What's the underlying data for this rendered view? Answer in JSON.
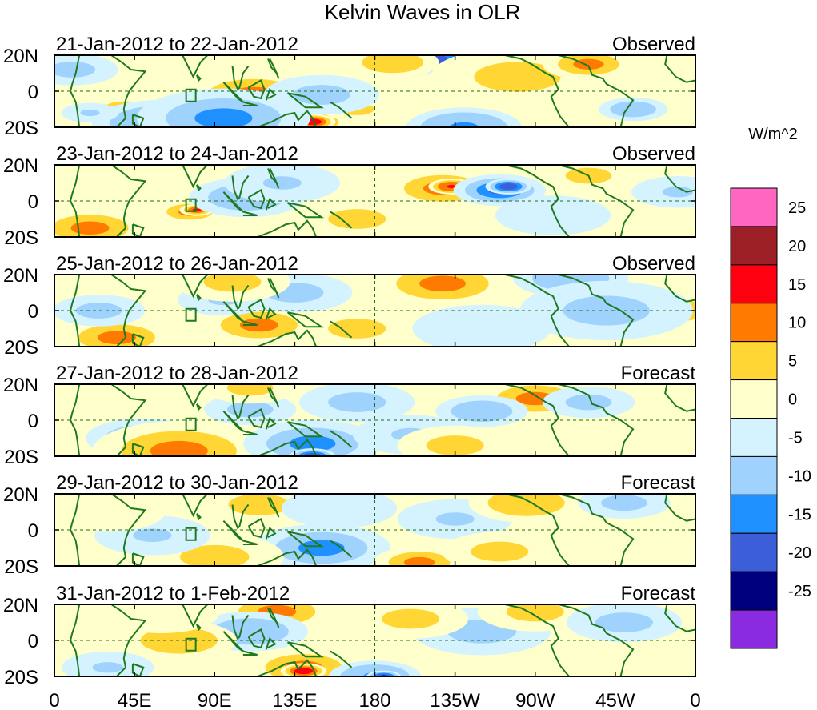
{
  "chart_data": {
    "type": "heatmap",
    "title": "Kelvin Waves in OLR",
    "units": "W/m^2",
    "x_tick_labels": [
      "0",
      "45E",
      "90E",
      "135E",
      "180",
      "135W",
      "90W",
      "45W",
      "0"
    ],
    "x_ticks_deg": [
      0,
      45,
      90,
      135,
      180,
      225,
      270,
      315,
      360
    ],
    "y_tick_labels": [
      "20N",
      "0",
      "20S"
    ],
    "ylim": [
      -20,
      20
    ],
    "colorbar": {
      "labels": [
        "25",
        "20",
        "15",
        "10",
        "5",
        "0",
        "-5",
        "-10",
        "-15",
        "-20",
        "-25"
      ],
      "levels": [
        25,
        20,
        15,
        10,
        5,
        0,
        -5,
        -10,
        -15,
        -20,
        -25
      ],
      "colors": [
        "#ff66c2",
        "#9b1f24",
        "#ff0010",
        "#ff7a00",
        "#ffd633",
        "#ffffcc",
        "#d4f3fe",
        "#a0d2fe",
        "#1e90ff",
        "#3c5fd9",
        "#00007f",
        "#8a2be2"
      ]
    },
    "panels": [
      {
        "label": "21-Jan-2012 to 22-Jan-2012",
        "status": "Observed",
        "features": [
          [
            210,
            18,
            8,
            -22
          ],
          [
            233,
            10,
            5,
            -28
          ],
          [
            112,
            -2,
            12,
            14
          ],
          [
            140,
            -17,
            8,
            16
          ],
          [
            145,
            -17,
            4,
            22
          ],
          [
            40,
            -10,
            6,
            12
          ],
          [
            60,
            -18,
            12,
            -16
          ],
          [
            95,
            -15,
            15,
            -14
          ],
          [
            230,
            -20,
            10,
            -15
          ],
          [
            20,
            -12,
            5,
            -10
          ],
          [
            325,
            -10,
            6,
            -12
          ],
          [
            170,
            -10,
            6,
            8
          ],
          [
            260,
            8,
            15,
            8
          ],
          [
            300,
            15,
            8,
            12
          ],
          [
            190,
            16,
            8,
            10
          ],
          [
            10,
            12,
            8,
            -8
          ],
          [
            150,
            -2,
            10,
            -8
          ]
        ]
      },
      {
        "label": "23-Jan-2012 to 24-Jan-2012",
        "status": "Observed",
        "features": [
          [
            218,
            7,
            10,
            14
          ],
          [
            223,
            8,
            4,
            20
          ],
          [
            250,
            6,
            8,
            -18
          ],
          [
            255,
            8,
            4,
            -22
          ],
          [
            20,
            -15,
            10,
            12
          ],
          [
            76,
            -6,
            6,
            14
          ],
          [
            80,
            -5,
            3,
            18
          ],
          [
            108,
            2,
            10,
            -12
          ],
          [
            128,
            10,
            10,
            -10
          ],
          [
            300,
            14,
            8,
            8
          ],
          [
            170,
            -10,
            10,
            8
          ],
          [
            350,
            5,
            8,
            -10
          ],
          [
            40,
            10,
            10,
            6
          ],
          [
            280,
            -8,
            10,
            -6
          ]
        ]
      },
      {
        "label": "25-Jan-2012 to 26-Jan-2012",
        "status": "Observed",
        "features": [
          [
            218,
            15,
            12,
            14
          ],
          [
            35,
            -15,
            10,
            14
          ],
          [
            115,
            -8,
            10,
            12
          ],
          [
            95,
            6,
            8,
            -10
          ],
          [
            135,
            10,
            10,
            -8
          ],
          [
            290,
            18,
            10,
            -12
          ],
          [
            350,
            0,
            8,
            12
          ],
          [
            310,
            0,
            15,
            -8
          ],
          [
            25,
            0,
            8,
            -8
          ],
          [
            170,
            -10,
            10,
            7
          ],
          [
            100,
            16,
            10,
            8
          ],
          [
            240,
            -10,
            12,
            -6
          ]
        ]
      },
      {
        "label": "27-Jan-2012 to 28-Jan-2012",
        "status": "Forecast",
        "features": [
          [
            270,
            12,
            10,
            12
          ],
          [
            50,
            -10,
            10,
            -12
          ],
          [
            70,
            -17,
            15,
            14
          ],
          [
            145,
            -13,
            12,
            -14
          ],
          [
            145,
            -20,
            4,
            -24
          ],
          [
            200,
            -8,
            10,
            -10
          ],
          [
            240,
            5,
            8,
            -12
          ],
          [
            110,
            6,
            8,
            -8
          ],
          [
            300,
            10,
            8,
            -8
          ],
          [
            30,
            12,
            10,
            6
          ],
          [
            170,
            10,
            10,
            -8
          ],
          [
            225,
            -14,
            10,
            7
          ],
          [
            110,
            18,
            8,
            8
          ]
        ]
      },
      {
        "label": "29-Jan-2012 to 30-Jan-2012",
        "status": "Forecast",
        "features": [
          [
            120,
            -17,
            10,
            16
          ],
          [
            115,
            -17,
            3,
            22
          ],
          [
            150,
            -10,
            12,
            -14
          ],
          [
            90,
            -15,
            12,
            8
          ],
          [
            115,
            14,
            8,
            10
          ],
          [
            205,
            -18,
            8,
            12
          ],
          [
            225,
            6,
            10,
            -10
          ],
          [
            265,
            15,
            10,
            10
          ],
          [
            55,
            -3,
            10,
            -10
          ],
          [
            320,
            15,
            8,
            -8
          ],
          [
            160,
            12,
            10,
            -6
          ],
          [
            250,
            -12,
            10,
            8
          ],
          [
            30,
            10,
            10,
            6
          ]
        ]
      },
      {
        "label": "31-Jan-2012 to 1-Feb-2012",
        "status": "Forecast",
        "features": [
          [
            125,
            16,
            10,
            13
          ],
          [
            140,
            -15,
            10,
            14
          ],
          [
            140,
            -17,
            4,
            22
          ],
          [
            180,
            -20,
            8,
            -16
          ],
          [
            185,
            -20,
            3,
            -24
          ],
          [
            110,
            5,
            10,
            -12
          ],
          [
            70,
            0,
            10,
            10
          ],
          [
            30,
            -15,
            8,
            -10
          ],
          [
            240,
            5,
            12,
            -8
          ],
          [
            270,
            16,
            10,
            8
          ],
          [
            320,
            10,
            10,
            -8
          ],
          [
            60,
            15,
            10,
            6
          ],
          [
            200,
            12,
            10,
            7
          ]
        ]
      }
    ]
  }
}
